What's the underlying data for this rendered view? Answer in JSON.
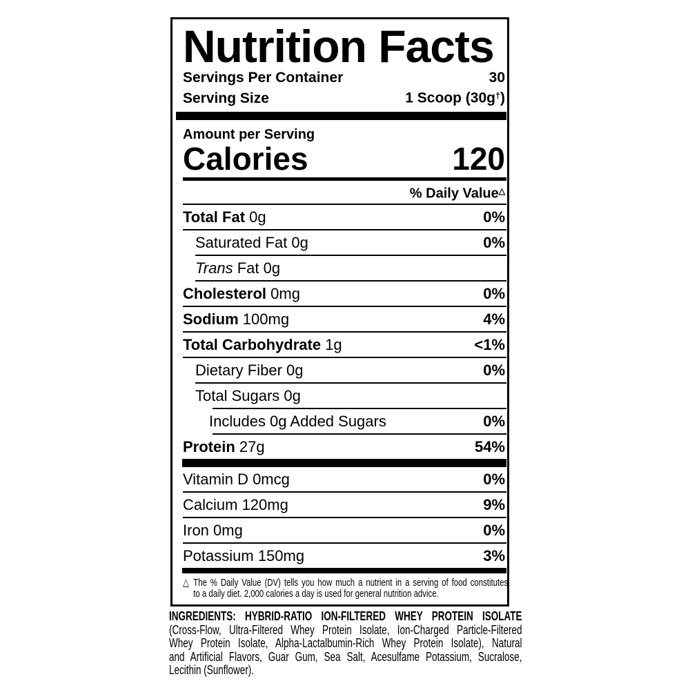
{
  "colors": {
    "ink": "#000000",
    "background": "#ffffff"
  },
  "label": {
    "title": "Nutrition Facts",
    "servings": {
      "per_container_label": "Servings Per Container",
      "per_container_value": "30",
      "size_label": "Serving Size",
      "size_value": "1 Scoop (30g",
      "size_value_sup": "†",
      "size_value_close": ")"
    },
    "calories": {
      "section_label": "Amount per Serving",
      "label": "Calories",
      "value": "120"
    },
    "daily_value_header": {
      "label": "% Daily Value",
      "sup": "△"
    },
    "rows": [
      {
        "bold": "Total Fat",
        "italic": "",
        "text": "0g",
        "dv": "0%"
      },
      {
        "bold": "",
        "italic": "",
        "text": "Saturated Fat 0g",
        "dv": "0%"
      },
      {
        "bold": "",
        "italic": "Trans",
        "text": "Fat 0g",
        "dv": ""
      },
      {
        "bold": "Cholesterol",
        "italic": "",
        "text": "0mg",
        "dv": "0%"
      },
      {
        "bold": "Sodium",
        "italic": "",
        "text": "100mg",
        "dv": "4%"
      },
      {
        "bold": "Total Carbohydrate",
        "italic": "",
        "text": "1g",
        "dv": "<1%"
      },
      {
        "bold": "",
        "italic": "",
        "text": "Dietary Fiber 0g",
        "dv": "0%"
      },
      {
        "bold": "",
        "italic": "",
        "text": "Total Sugars 0g",
        "dv": ""
      },
      {
        "bold": "",
        "italic": "",
        "text": "Includes 0g Added Sugars",
        "dv": "0%"
      },
      {
        "bold": "Protein",
        "italic": "",
        "text": "27g",
        "dv": "54%"
      }
    ],
    "micronutrients": [
      {
        "text": "Vitamin D 0mcg",
        "dv": "0%"
      },
      {
        "text": "Calcium 120mg",
        "dv": "9%"
      },
      {
        "text": "Iron 0mg",
        "dv": "0%"
      },
      {
        "text": "Potassium 150mg",
        "dv": "3%"
      }
    ],
    "footnote": {
      "line1": "△ The % Daily Value (DV) tells you how much a nutrient in a serving of food constitutes",
      "line2": "to a daily diet. 2,000 calories a day is used for general nutrition advice."
    }
  },
  "ingredients": {
    "heading": "INGREDIENTS: HYBRID-RATIO ION-FILTERED WHEY PROTEIN ISOLATE",
    "lines": [
      "(Cross-Flow, Ultra-Filtered Whey Protein Isolate, Ion-Charged Particle-Filtered",
      "Whey Protein Isolate, Alpha-Lactalbumin-Rich Whey Protein Isolate), Natural",
      "and Artificial Flavors, Guar Gum, Sea Salt, Acesulfame Potassium, Sucralose,",
      "Lecithin (Sunflower)."
    ]
  }
}
